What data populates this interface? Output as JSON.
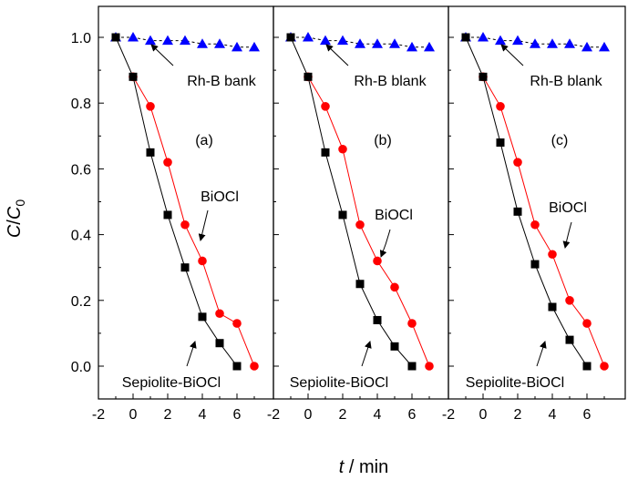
{
  "chart_data": {
    "type": "line",
    "ylabel": "C/C0",
    "ylabel_main": "C",
    "ylabel_sep": "/",
    "ylabel_base": "C",
    "ylabel_sub": "0",
    "xlabel": "t / min",
    "xlabel_var": "t",
    "xlabel_unit": " / min",
    "xlim": [
      -2,
      8
    ],
    "ylim": [
      -0.1,
      1.1
    ],
    "xticks": [
      -2,
      0,
      2,
      4,
      6
    ],
    "yticks": [
      "0.0",
      "0.2",
      "0.4",
      "0.6",
      "0.8",
      "1.0"
    ],
    "grid": false,
    "series_styles": [
      {
        "marker": "triangle",
        "color": "#0000ff",
        "line_color": "#000000",
        "dash": "3,3"
      },
      {
        "marker": "circle",
        "color": "#ff0000",
        "line_color": "#ff0000",
        "dash": ""
      },
      {
        "marker": "square",
        "color": "#000000",
        "line_color": "#000000",
        "dash": ""
      }
    ],
    "panels": [
      {
        "label": "(a)",
        "annotations": [
          "Rh-B bank",
          "BiOCl",
          "Sepiolite-BiOCl"
        ],
        "series": [
          {
            "x": [
              -1,
              0,
              1,
              2,
              3,
              4,
              5,
              6,
              7
            ],
            "values": [
              1.0,
              1.0,
              0.99,
              0.99,
              0.99,
              0.98,
              0.98,
              0.97,
              0.97
            ]
          },
          {
            "x": [
              0,
              1,
              2,
              3,
              4,
              5,
              6,
              7
            ],
            "values": [
              0.88,
              0.79,
              0.62,
              0.43,
              0.32,
              0.16,
              0.13,
              0.0
            ]
          },
          {
            "x": [
              -1,
              0,
              1,
              2,
              3,
              4,
              5,
              6
            ],
            "values": [
              1.0,
              0.88,
              0.65,
              0.46,
              0.3,
              0.15,
              0.07,
              0.0
            ]
          }
        ]
      },
      {
        "label": "(b)",
        "annotations": [
          "Rh-B blank",
          "BiOCl",
          "Sepiolite-BiOCl"
        ],
        "series": [
          {
            "x": [
              -1,
              0,
              1,
              2,
              3,
              4,
              5,
              6,
              7
            ],
            "values": [
              1.0,
              1.0,
              0.99,
              0.99,
              0.98,
              0.98,
              0.98,
              0.97,
              0.97
            ]
          },
          {
            "x": [
              0,
              1,
              2,
              3,
              4,
              5,
              6,
              7
            ],
            "values": [
              0.88,
              0.79,
              0.66,
              0.43,
              0.32,
              0.24,
              0.13,
              0.0
            ]
          },
          {
            "x": [
              -1,
              0,
              1,
              2,
              3,
              4,
              5,
              6
            ],
            "values": [
              1.0,
              0.88,
              0.65,
              0.46,
              0.25,
              0.14,
              0.06,
              0.0
            ]
          }
        ]
      },
      {
        "label": "(c)",
        "annotations": [
          "Rh-B blank",
          "BiOCl",
          "Sepiolite-BiOCl"
        ],
        "series": [
          {
            "x": [
              -1,
              0,
              1,
              2,
              3,
              4,
              5,
              6,
              7
            ],
            "values": [
              1.0,
              1.0,
              0.99,
              0.99,
              0.98,
              0.98,
              0.98,
              0.97,
              0.97
            ]
          },
          {
            "x": [
              0,
              1,
              2,
              3,
              4,
              5,
              6,
              7
            ],
            "values": [
              0.88,
              0.79,
              0.62,
              0.43,
              0.34,
              0.2,
              0.13,
              0.0
            ]
          },
          {
            "x": [
              -1,
              0,
              1,
              2,
              3,
              4,
              5,
              6
            ],
            "values": [
              1.0,
              0.88,
              0.68,
              0.47,
              0.31,
              0.18,
              0.08,
              0.0
            ]
          }
        ]
      }
    ]
  }
}
